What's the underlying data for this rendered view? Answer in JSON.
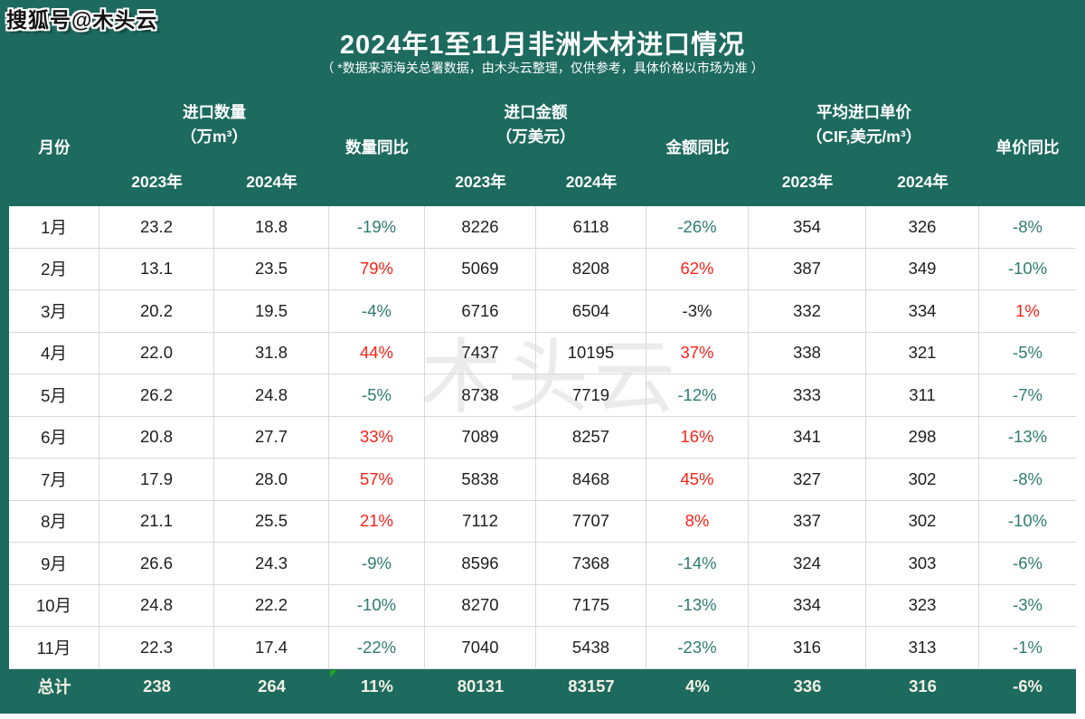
{
  "badge": {
    "text": "搜狐号@木头云"
  },
  "watermark": {
    "text": "木头云"
  },
  "colors": {
    "page_teal": "#1d6a5e",
    "yoy_up_red": "#fa2318",
    "yoy_down_teal": "#2e7b70",
    "yoy_flat_black": "#1e1e1e",
    "gridline": "#d8d8d8",
    "header_text": "#ffffff",
    "total_text": "#f3f1e4",
    "watermark_gray": "#dcdcdc",
    "comment_marker_green": "#1fa31f"
  },
  "chart_data": {
    "type": "table",
    "title": "2024年1至11月非洲木材进口情况",
    "subtitle": "（ *数据来源海关总署数据，由木头云整理，仅供参考，具体价格以市场为准 ）",
    "header": {
      "month": "月份",
      "years": [
        "2023年",
        "2024年"
      ],
      "groups": [
        {
          "line1": "进口数量",
          "line2": "（万m³）",
          "yoy": "数量同比"
        },
        {
          "line1": "进口金额",
          "line2": "（万美元）",
          "yoy": "金额同比"
        },
        {
          "line1": "平均进口单价",
          "line2": "（CIF,美元/m³）",
          "yoy": "单价同比"
        }
      ]
    },
    "rows": [
      {
        "month": "1月",
        "cells": [
          {
            "t": "23.2"
          },
          {
            "t": "18.8"
          },
          {
            "t": "-19%",
            "c": "down"
          },
          {
            "t": "8226"
          },
          {
            "t": "6118"
          },
          {
            "t": "-26%",
            "c": "down"
          },
          {
            "t": "354"
          },
          {
            "t": "326"
          },
          {
            "t": "-8%",
            "c": "down"
          }
        ]
      },
      {
        "month": "2月",
        "cells": [
          {
            "t": "13.1"
          },
          {
            "t": "23.5"
          },
          {
            "t": "79%",
            "c": "up"
          },
          {
            "t": "5069"
          },
          {
            "t": "8208"
          },
          {
            "t": "62%",
            "c": "up"
          },
          {
            "t": "387"
          },
          {
            "t": "349"
          },
          {
            "t": "-10%",
            "c": "down"
          }
        ]
      },
      {
        "month": "3月",
        "cells": [
          {
            "t": "20.2"
          },
          {
            "t": "19.5"
          },
          {
            "t": "-4%",
            "c": "down"
          },
          {
            "t": "6716"
          },
          {
            "t": "6504"
          },
          {
            "t": "-3%",
            "c": "flat"
          },
          {
            "t": "332"
          },
          {
            "t": "334"
          },
          {
            "t": "1%",
            "c": "up"
          }
        ]
      },
      {
        "month": "4月",
        "cells": [
          {
            "t": "22.0"
          },
          {
            "t": "31.8"
          },
          {
            "t": "44%",
            "c": "up"
          },
          {
            "t": "7437"
          },
          {
            "t": "10195"
          },
          {
            "t": "37%",
            "c": "up"
          },
          {
            "t": "338"
          },
          {
            "t": "321"
          },
          {
            "t": "-5%",
            "c": "down"
          }
        ]
      },
      {
        "month": "5月",
        "cells": [
          {
            "t": "26.2"
          },
          {
            "t": "24.8"
          },
          {
            "t": "-5%",
            "c": "down"
          },
          {
            "t": "8738"
          },
          {
            "t": "7719"
          },
          {
            "t": "-12%",
            "c": "down"
          },
          {
            "t": "333"
          },
          {
            "t": "311"
          },
          {
            "t": "-7%",
            "c": "down"
          }
        ]
      },
      {
        "month": "6月",
        "cells": [
          {
            "t": "20.8"
          },
          {
            "t": "27.7"
          },
          {
            "t": "33%",
            "c": "up"
          },
          {
            "t": "7089"
          },
          {
            "t": "8257"
          },
          {
            "t": "16%",
            "c": "up"
          },
          {
            "t": "341"
          },
          {
            "t": "298"
          },
          {
            "t": "-13%",
            "c": "down"
          }
        ]
      },
      {
        "month": "7月",
        "cells": [
          {
            "t": "17.9"
          },
          {
            "t": "28.0"
          },
          {
            "t": "57%",
            "c": "up"
          },
          {
            "t": "5838"
          },
          {
            "t": "8468"
          },
          {
            "t": "45%",
            "c": "up"
          },
          {
            "t": "327"
          },
          {
            "t": "302"
          },
          {
            "t": "-8%",
            "c": "down"
          }
        ]
      },
      {
        "month": "8月",
        "cells": [
          {
            "t": "21.1"
          },
          {
            "t": "25.5"
          },
          {
            "t": "21%",
            "c": "up"
          },
          {
            "t": "7112"
          },
          {
            "t": "7707"
          },
          {
            "t": "8%",
            "c": "up"
          },
          {
            "t": "337"
          },
          {
            "t": "302"
          },
          {
            "t": "-10%",
            "c": "down"
          }
        ]
      },
      {
        "month": "9月",
        "cells": [
          {
            "t": "26.6"
          },
          {
            "t": "24.3"
          },
          {
            "t": "-9%",
            "c": "down"
          },
          {
            "t": "8596"
          },
          {
            "t": "7368"
          },
          {
            "t": "-14%",
            "c": "down"
          },
          {
            "t": "324"
          },
          {
            "t": "303"
          },
          {
            "t": "-6%",
            "c": "down"
          }
        ]
      },
      {
        "month": "10月",
        "cells": [
          {
            "t": "24.8"
          },
          {
            "t": "22.2"
          },
          {
            "t": "-10%",
            "c": "down"
          },
          {
            "t": "8270"
          },
          {
            "t": "7175"
          },
          {
            "t": "-13%",
            "c": "down"
          },
          {
            "t": "334"
          },
          {
            "t": "323"
          },
          {
            "t": "-3%",
            "c": "down"
          }
        ]
      },
      {
        "month": "11月",
        "cells": [
          {
            "t": "22.3"
          },
          {
            "t": "17.4"
          },
          {
            "t": "-22%",
            "c": "down"
          },
          {
            "t": "7040"
          },
          {
            "t": "5438"
          },
          {
            "t": "-23%",
            "c": "down"
          },
          {
            "t": "316"
          },
          {
            "t": "313"
          },
          {
            "t": "-1%",
            "c": "down"
          }
        ]
      }
    ],
    "total": {
      "month": "总计",
      "cells": [
        {
          "t": "238"
        },
        {
          "t": "264"
        },
        {
          "t": "11%"
        },
        {
          "t": "80131"
        },
        {
          "t": "83157"
        },
        {
          "t": "4%"
        },
        {
          "t": "336"
        },
        {
          "t": "316"
        },
        {
          "t": "-6%"
        }
      ]
    }
  }
}
